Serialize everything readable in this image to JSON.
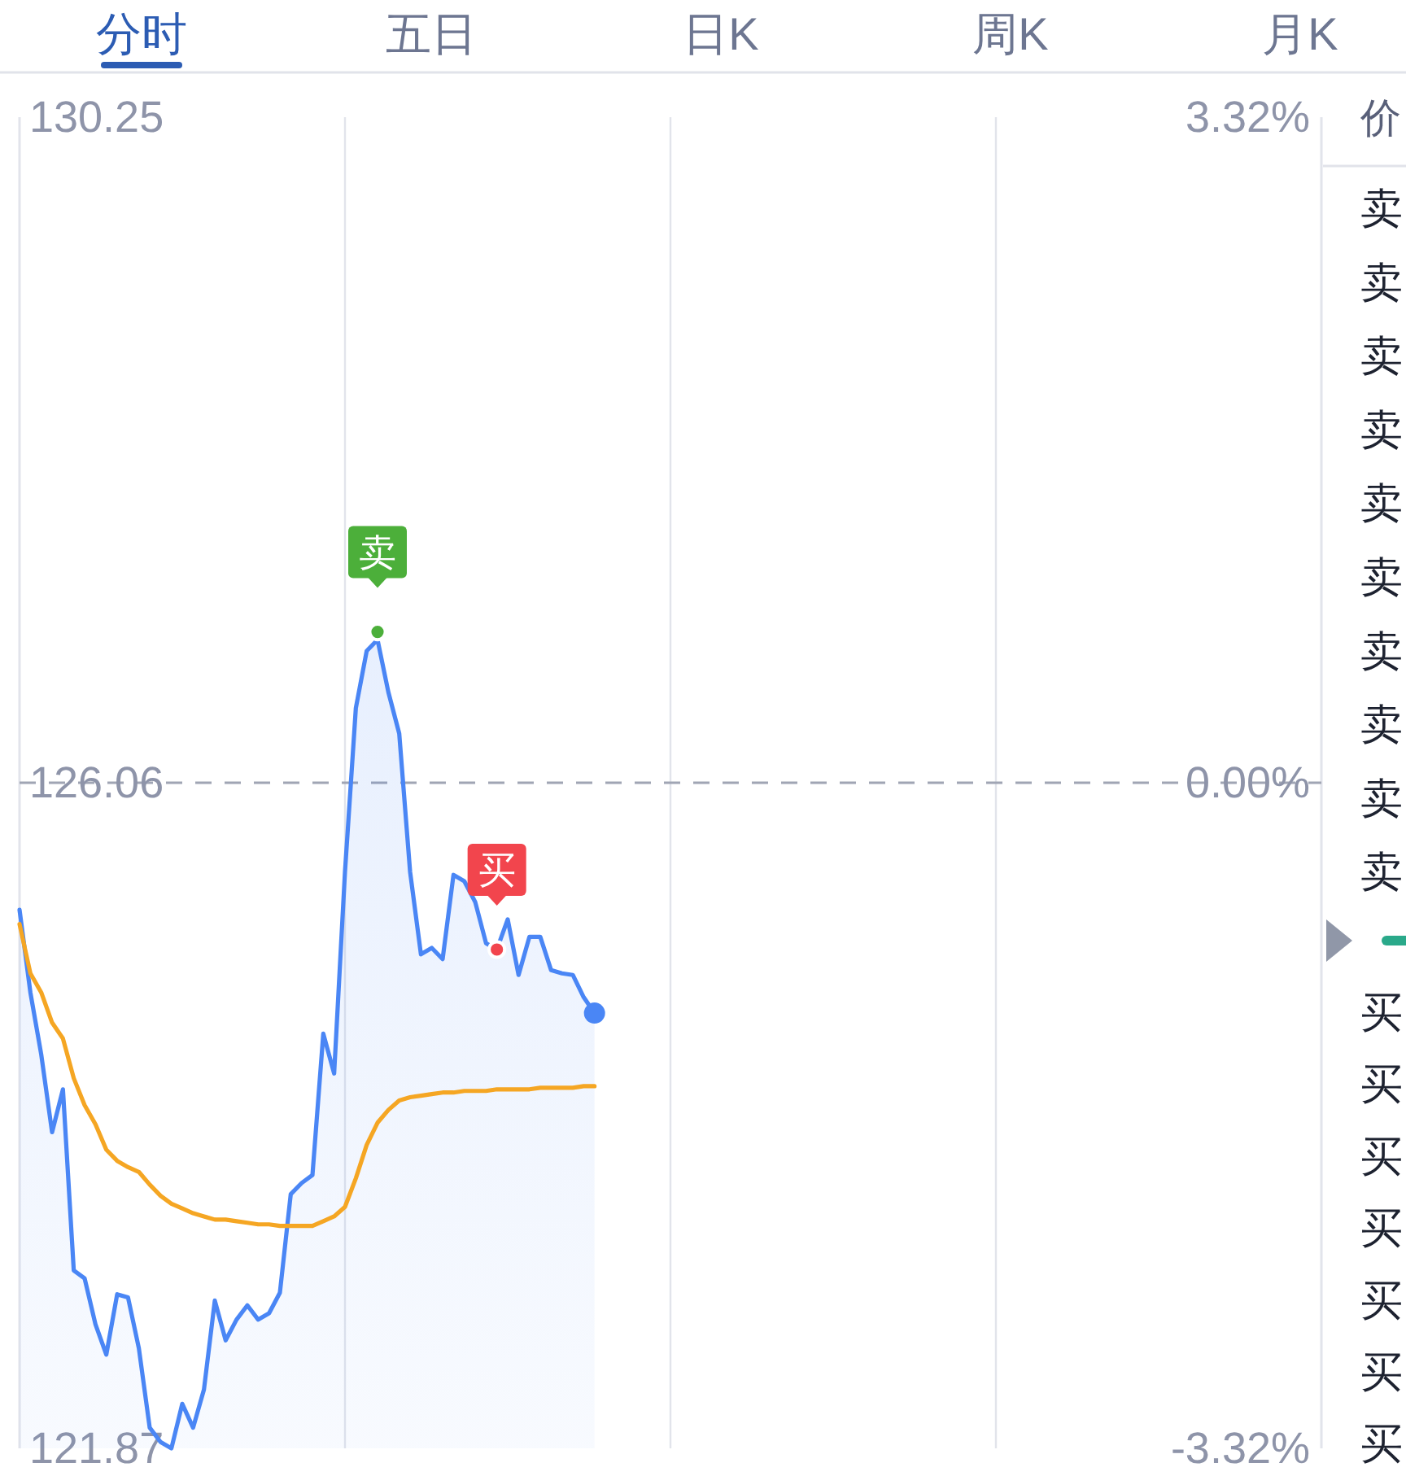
{
  "chart_data": {
    "type": "line",
    "categories": [
      null,
      null,
      null,
      null,
      null,
      null,
      null,
      null,
      null,
      null,
      null,
      null,
      null,
      null,
      null,
      null,
      null,
      null,
      null,
      null,
      null,
      null,
      null,
      null,
      null,
      null,
      null,
      null,
      null,
      null,
      null,
      null,
      null,
      null,
      null,
      null,
      null,
      null,
      null,
      null,
      null,
      null,
      null,
      null,
      null,
      null,
      null,
      null,
      null,
      null,
      null,
      null,
      null,
      null,
      null,
      null,
      null,
      null,
      null,
      null,
      null,
      null,
      null,
      null,
      null,
      null,
      null,
      null,
      null,
      null,
      null,
      null,
      null,
      null,
      null,
      null,
      null,
      null,
      null,
      null,
      null,
      null,
      null,
      null,
      null,
      null,
      null,
      null,
      null,
      null,
      null,
      null,
      null,
      null,
      null,
      null,
      null,
      null,
      null,
      null,
      null,
      null,
      null,
      null,
      null,
      null,
      null,
      null,
      null,
      null,
      null,
      null,
      null,
      null,
      null,
      null,
      null,
      null,
      null,
      null,
      null
    ],
    "ylim": [
      121.87,
      130.25
    ],
    "yticks": [
      130.25,
      126.06,
      121.87
    ],
    "y2lim": [
      -3.32,
      3.32
    ],
    "y2ticks": [
      {
        "value": 3.32,
        "label": "3.32%"
      },
      {
        "value": 0,
        "label": "0.00%"
      },
      {
        "value": -3.32,
        "label": "-3.32%"
      }
    ],
    "tick_labels": "y",
    "grid": "x",
    "ref_lines": [
      {
        "axis": "y",
        "value": 126.06,
        "color": "#a0a5b4",
        "line_style": "dashed"
      }
    ],
    "series": [
      {
        "type": "area",
        "color": "#4a86f5",
        "values": [
          125.26,
          124.74,
          124.35,
          123.86,
          124.13,
          122.99,
          122.94,
          122.65,
          122.46,
          122.84,
          122.82,
          122.5,
          122.0,
          121.91,
          121.87,
          122.15,
          122.0,
          122.24,
          122.8,
          122.55,
          122.68,
          122.77,
          122.68,
          122.72,
          122.85,
          123.47,
          123.54,
          123.59,
          124.48,
          124.23,
          125.5,
          126.53,
          126.89,
          126.96,
          126.63,
          126.37,
          125.5,
          124.98,
          125.02,
          124.95,
          125.48,
          125.44,
          125.31,
          125.05,
          125.01,
          125.2,
          124.85,
          125.09,
          125.09,
          124.88,
          124.86,
          124.85,
          124.71,
          124.61,
          null,
          null,
          null,
          null,
          null,
          null,
          null,
          null,
          null,
          null,
          null,
          null,
          null,
          null,
          null,
          null,
          null,
          null,
          null,
          null,
          null,
          null,
          null,
          null,
          null,
          null,
          null,
          null,
          null,
          null,
          null,
          null,
          null,
          null,
          null,
          null,
          null,
          null,
          null,
          null,
          null,
          null,
          null,
          null,
          null,
          null,
          null,
          null,
          null,
          null,
          null,
          null,
          null,
          null,
          null,
          null,
          null,
          null,
          null,
          null,
          null,
          null,
          null,
          null,
          null,
          null,
          null
        ]
      },
      {
        "type": "line",
        "color": "#f5a623",
        "values": [
          125.17,
          124.86,
          124.74,
          124.55,
          124.45,
          124.2,
          124.03,
          123.91,
          123.75,
          123.68,
          123.64,
          123.61,
          123.53,
          123.46,
          123.41,
          123.38,
          123.35,
          123.33,
          123.31,
          123.31,
          123.3,
          123.29,
          123.28,
          123.28,
          123.27,
          123.27,
          123.27,
          123.27,
          123.3,
          123.33,
          123.39,
          123.57,
          123.78,
          123.92,
          124.0,
          124.06,
          124.08,
          124.09,
          124.1,
          124.11,
          124.11,
          124.12,
          124.12,
          124.12,
          124.13,
          124.13,
          124.13,
          124.13,
          124.14,
          124.14,
          124.14,
          124.14,
          124.15,
          124.15,
          null,
          null,
          null,
          null,
          null,
          null,
          null,
          null,
          null,
          null,
          null,
          null,
          null,
          null,
          null,
          null,
          null,
          null,
          null,
          null,
          null,
          null,
          null,
          null,
          null,
          null,
          null,
          null,
          null,
          null,
          null,
          null,
          null,
          null,
          null,
          null,
          null,
          null,
          null,
          null,
          null,
          null,
          null,
          null,
          null,
          null,
          null,
          null,
          null,
          null,
          null,
          null,
          null,
          null,
          null,
          null,
          null,
          null,
          null,
          null,
          null,
          null,
          null,
          null,
          null,
          null,
          null
        ]
      },
      {
        "type": "scatter",
        "color": "#4caf3a",
        "values": [
          null,
          null,
          null,
          null,
          null,
          null,
          null,
          null,
          null,
          null,
          null,
          null,
          null,
          null,
          null,
          null,
          null,
          null,
          null,
          null,
          null,
          null,
          null,
          null,
          null,
          null,
          null,
          null,
          null,
          null,
          null,
          null,
          null,
          127.01,
          null,
          null,
          null,
          null,
          null,
          null,
          null,
          null,
          null,
          null,
          null,
          null,
          null,
          null,
          null,
          null,
          null,
          null,
          null,
          null,
          null,
          null,
          null,
          null,
          null,
          null,
          null,
          null,
          null,
          null,
          null,
          null,
          null,
          null,
          null,
          null,
          null,
          null,
          null,
          null,
          null,
          null,
          null,
          null,
          null,
          null,
          null,
          null,
          null,
          null,
          null,
          null,
          null,
          null,
          null,
          null,
          null,
          null,
          null,
          null,
          null,
          null,
          null,
          null,
          null,
          null,
          null,
          null,
          null,
          null,
          null,
          null,
          null,
          null,
          null,
          null,
          null,
          null,
          null,
          null,
          null,
          null,
          null,
          null,
          null,
          null,
          null
        ],
        "value_labels": [
          null,
          null,
          null,
          null,
          null,
          null,
          null,
          null,
          null,
          null,
          null,
          null,
          null,
          null,
          null,
          null,
          null,
          null,
          null,
          null,
          null,
          null,
          null,
          null,
          null,
          null,
          null,
          null,
          null,
          null,
          null,
          null,
          null,
          "卖",
          null,
          null,
          null,
          null,
          null,
          null,
          null,
          null,
          null,
          null,
          null,
          null,
          null,
          null,
          null,
          null,
          null,
          null,
          null,
          null,
          null,
          null,
          null,
          null,
          null,
          null,
          null,
          null,
          null,
          null,
          null,
          null,
          null,
          null,
          null,
          null,
          null,
          null,
          null,
          null,
          null,
          null,
          null,
          null,
          null,
          null,
          null,
          null,
          null,
          null,
          null,
          null,
          null,
          null,
          null,
          null,
          null,
          null,
          null,
          null,
          null,
          null,
          null,
          null,
          null,
          null,
          null,
          null,
          null,
          null,
          null,
          null,
          null,
          null,
          null,
          null,
          null,
          null,
          null,
          null,
          null,
          null,
          null,
          null,
          null,
          null,
          null
        ]
      },
      {
        "type": "scatter",
        "color": "#f2454d",
        "values": [
          null,
          null,
          null,
          null,
          null,
          null,
          null,
          null,
          null,
          null,
          null,
          null,
          null,
          null,
          null,
          null,
          null,
          null,
          null,
          null,
          null,
          null,
          null,
          null,
          null,
          null,
          null,
          null,
          null,
          null,
          null,
          null,
          null,
          null,
          null,
          null,
          null,
          null,
          null,
          null,
          null,
          null,
          null,
          null,
          125.01,
          null,
          null,
          null,
          null,
          null,
          null,
          null,
          null,
          null,
          null,
          null,
          null,
          null,
          null,
          null,
          null,
          null,
          null,
          null,
          null,
          null,
          null,
          null,
          null,
          null,
          null,
          null,
          null,
          null,
          null,
          null,
          null,
          null,
          null,
          null,
          null,
          null,
          null,
          null,
          null,
          null,
          null,
          null,
          null,
          null,
          null,
          null,
          null,
          null,
          null,
          null,
          null,
          null,
          null,
          null,
          null,
          null,
          null,
          null,
          null,
          null,
          null,
          null,
          null,
          null,
          null,
          null,
          null,
          null,
          null,
          null,
          null,
          null,
          null,
          null,
          null
        ],
        "value_labels": [
          null,
          null,
          null,
          null,
          null,
          null,
          null,
          null,
          null,
          null,
          null,
          null,
          null,
          null,
          null,
          null,
          null,
          null,
          null,
          null,
          null,
          null,
          null,
          null,
          null,
          null,
          null,
          null,
          null,
          null,
          null,
          null,
          null,
          null,
          null,
          null,
          null,
          null,
          null,
          null,
          null,
          null,
          null,
          null,
          "买",
          null,
          null,
          null,
          null,
          null,
          null,
          null,
          null,
          null,
          null,
          null,
          null,
          null,
          null,
          null,
          null,
          null,
          null,
          null,
          null,
          null,
          null,
          null,
          null,
          null,
          null,
          null,
          null,
          null,
          null,
          null,
          null,
          null,
          null,
          null,
          null,
          null,
          null,
          null,
          null,
          null,
          null,
          null,
          null,
          null,
          null,
          null,
          null,
          null,
          null,
          null,
          null,
          null,
          null,
          null,
          null,
          null,
          null,
          null,
          null,
          null,
          null,
          null,
          null,
          null,
          null,
          null,
          null,
          null,
          null,
          null,
          null,
          null,
          null,
          null,
          null
        ]
      },
      {
        "type": "scatter",
        "color": "#4a86f5",
        "values": [
          null,
          null,
          null,
          null,
          null,
          null,
          null,
          null,
          null,
          null,
          null,
          null,
          null,
          null,
          null,
          null,
          null,
          null,
          null,
          null,
          null,
          null,
          null,
          null,
          null,
          null,
          null,
          null,
          null,
          null,
          null,
          null,
          null,
          null,
          null,
          null,
          null,
          null,
          null,
          null,
          null,
          null,
          null,
          null,
          null,
          null,
          null,
          null,
          null,
          null,
          null,
          null,
          null,
          124.61,
          null,
          null,
          null,
          null,
          null,
          null,
          null,
          null,
          null,
          null,
          null,
          null,
          null,
          null,
          null,
          null,
          null,
          null,
          null,
          null,
          null,
          null,
          null,
          null,
          null,
          null,
          null,
          null,
          null,
          null,
          null,
          null,
          null,
          null,
          null,
          null,
          null,
          null,
          null,
          null,
          null,
          null,
          null,
          null,
          null,
          null,
          null,
          null,
          null,
          null,
          null,
          null,
          null,
          null,
          null,
          null,
          null,
          null,
          null,
          null,
          null,
          null,
          null,
          null,
          null,
          null,
          null
        ]
      }
    ],
    "annotations": [
      "分时",
      "五日",
      "日K",
      "周K",
      "月K",
      "价",
      "卖",
      "卖",
      "卖",
      "卖",
      "卖",
      "卖",
      "卖",
      "卖",
      "卖",
      "卖",
      "买",
      "买",
      "买",
      "买",
      "买",
      "买",
      "买"
    ]
  }
}
